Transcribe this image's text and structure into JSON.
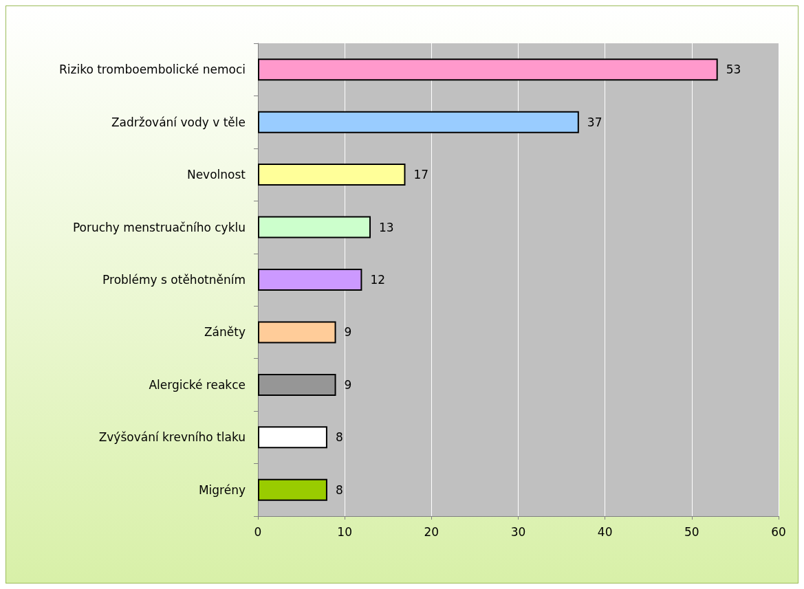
{
  "chart_data": {
    "type": "bar",
    "orientation": "horizontal",
    "categories": [
      "Riziko tromboembolické nemoci",
      "Zadržování vody v těle",
      "Nevolnost",
      "Poruchy menstruačního cyklu",
      "Problémy s otěhotněním",
      "Záněty",
      "Alergické reakce",
      "Zvýšování krevního tlaku",
      "Migrény"
    ],
    "values": [
      53,
      37,
      17,
      13,
      12,
      9,
      9,
      8,
      8
    ],
    "colors": [
      "#ff99cc",
      "#99ccff",
      "#ffff99",
      "#ccffcc",
      "#cc99ff",
      "#ffcc99",
      "#969696",
      "#ffffff",
      "#99cc00"
    ],
    "data_labels": true,
    "xlim": [
      0,
      60
    ],
    "xticks": [
      0,
      10,
      20,
      30,
      40,
      50,
      60
    ],
    "grid": "x"
  }
}
